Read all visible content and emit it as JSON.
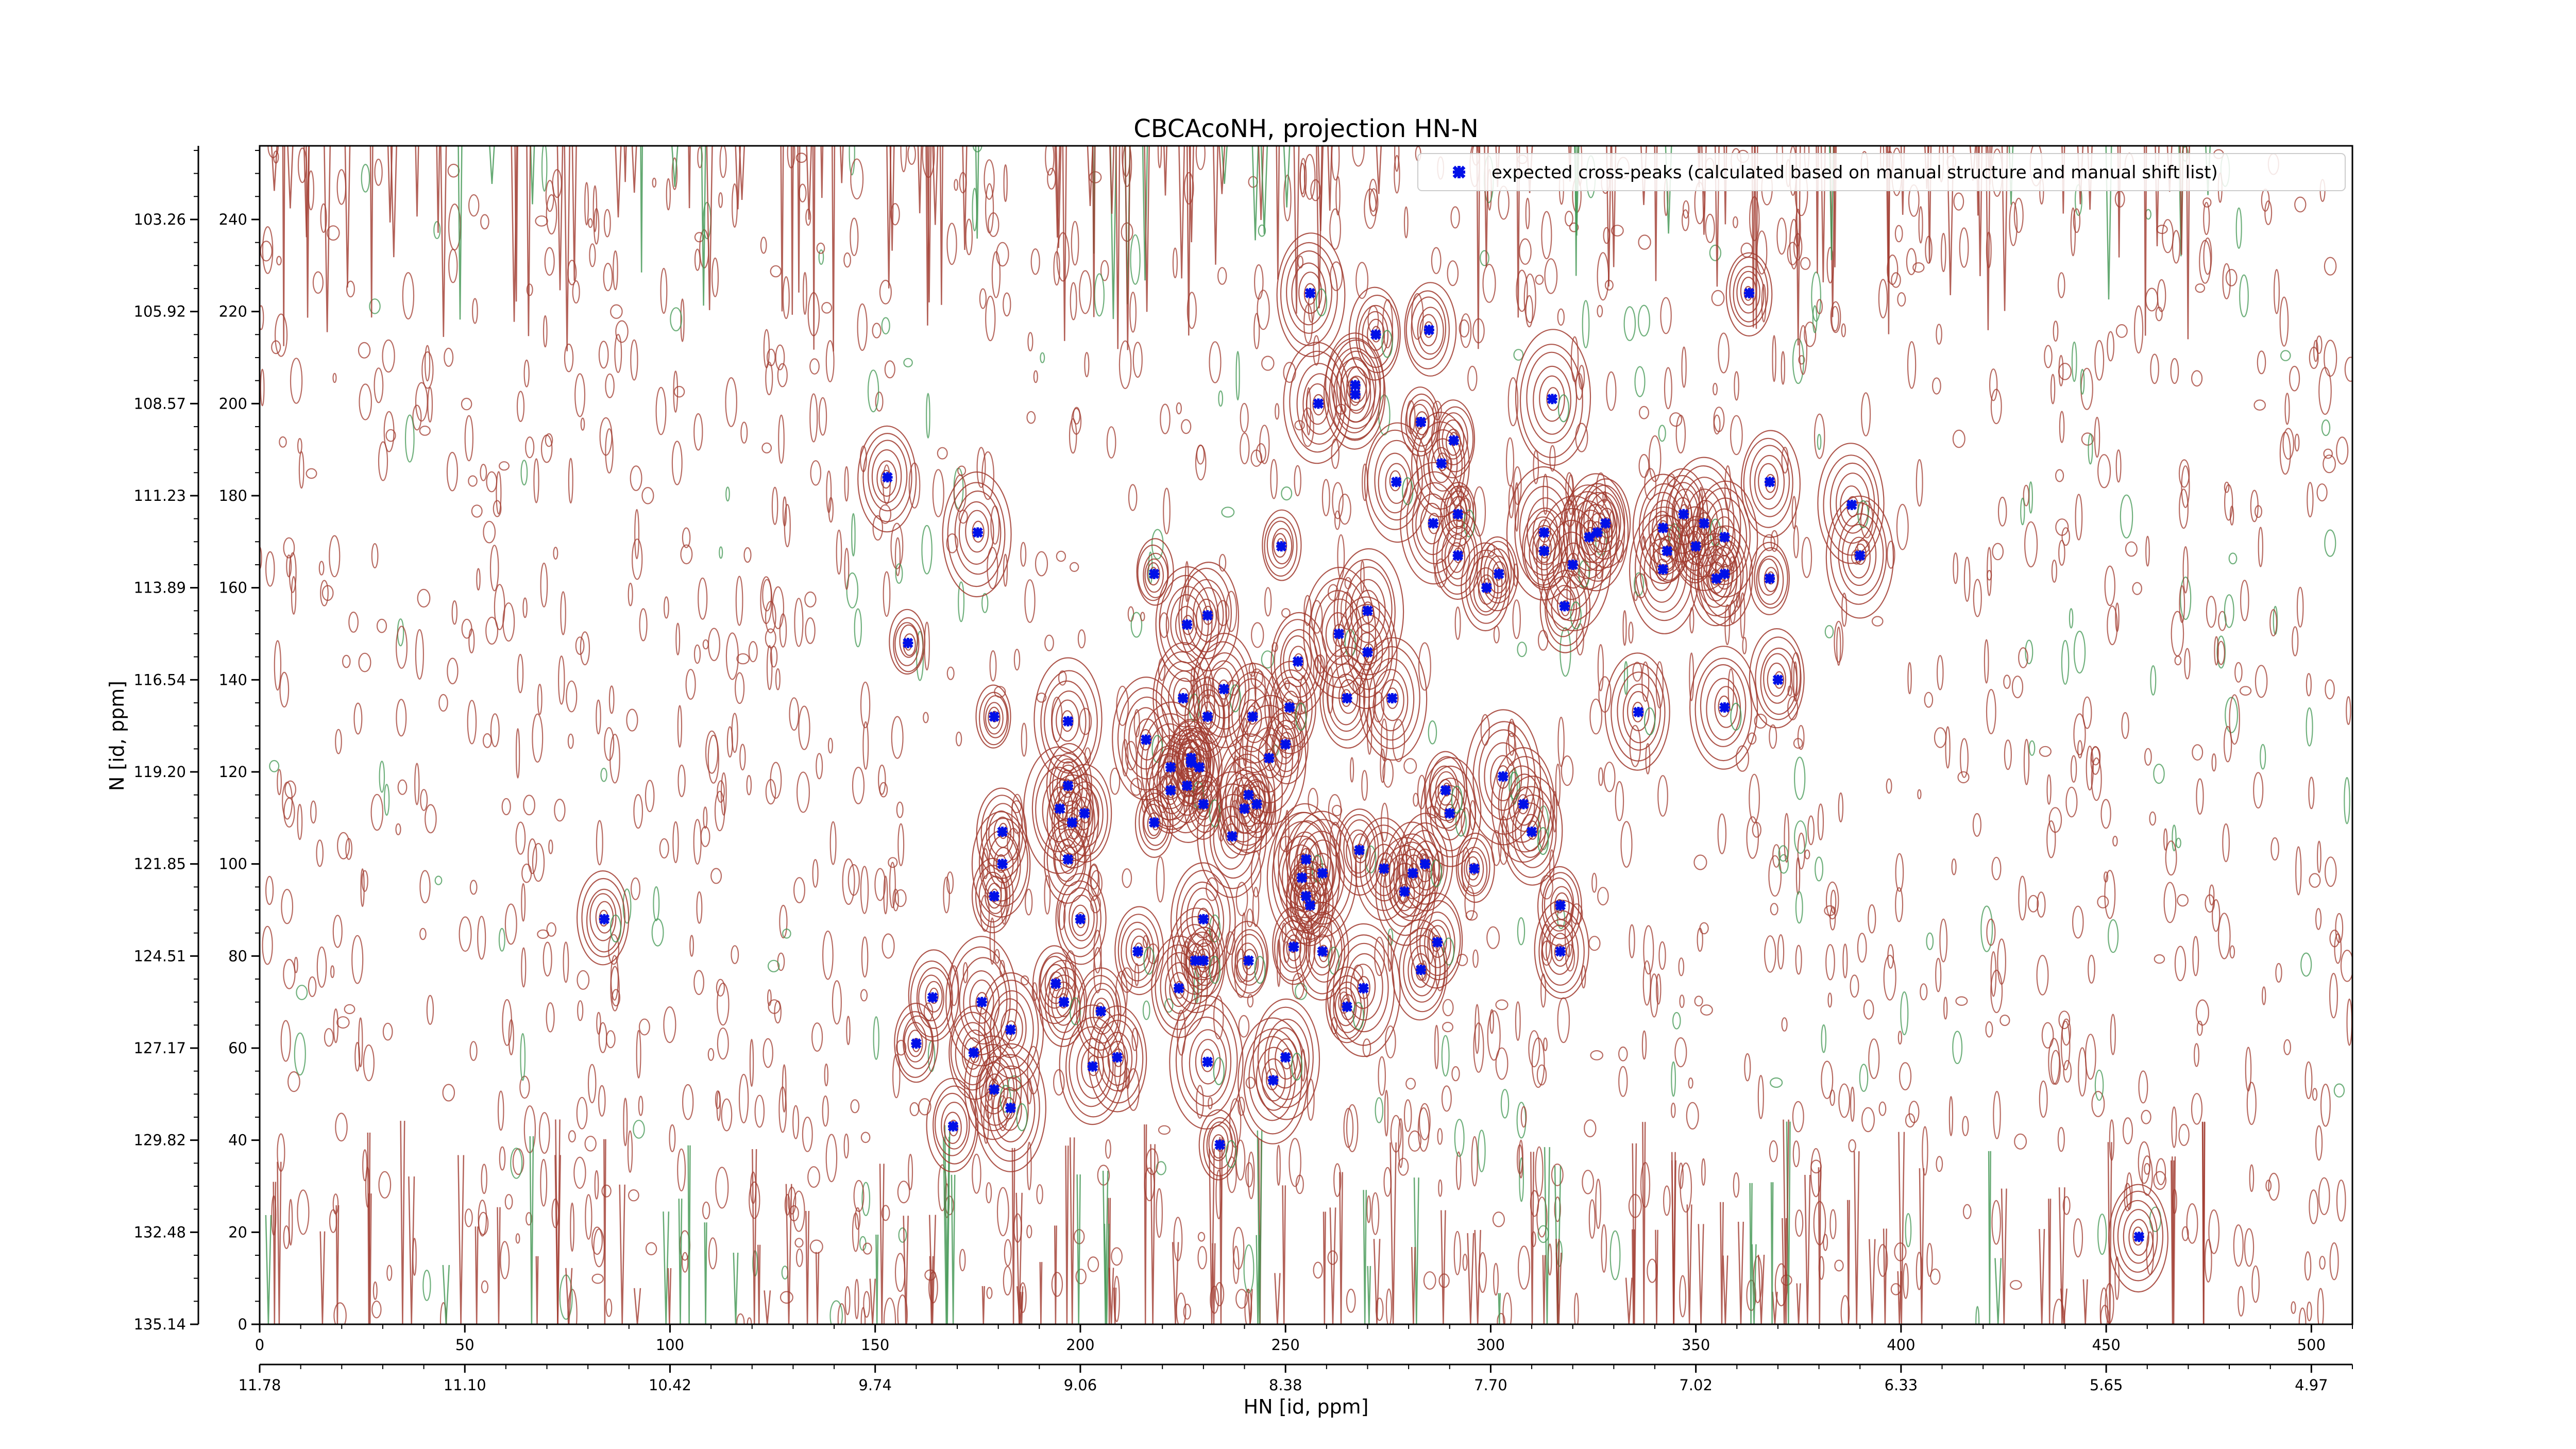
{
  "chart_data": {
    "type": "scatter",
    "title": "CBCAcoNH, projection HN-N",
    "xlabel": "HN [id, ppm]",
    "ylabel": "N [id, ppm]",
    "xlim": [
      0,
      510
    ],
    "ylim": [
      0,
      256
    ],
    "x_ticks": [
      0,
      50,
      100,
      150,
      200,
      250,
      300,
      350,
      400,
      450,
      500
    ],
    "y_ticks": [
      0,
      20,
      40,
      60,
      80,
      100,
      120,
      140,
      160,
      180,
      200,
      220,
      240
    ],
    "x_ppm_ticks": [
      {
        "x": 0,
        "label": "11.78"
      },
      {
        "x": 50,
        "label": "11.10"
      },
      {
        "x": 100,
        "label": "10.42"
      },
      {
        "x": 150,
        "label": "9.74"
      },
      {
        "x": 200,
        "label": "9.06"
      },
      {
        "x": 250,
        "label": "8.38"
      },
      {
        "x": 300,
        "label": "7.70"
      },
      {
        "x": 350,
        "label": "7.02"
      },
      {
        "x": 400,
        "label": "6.33"
      },
      {
        "x": 450,
        "label": "5.65"
      },
      {
        "x": 500,
        "label": "4.97"
      }
    ],
    "y_ppm_ticks": [
      {
        "y": 0,
        "label": "135.14"
      },
      {
        "y": 20,
        "label": "132.48"
      },
      {
        "y": 40,
        "label": "129.82"
      },
      {
        "y": 60,
        "label": "127.17"
      },
      {
        "y": 80,
        "label": "124.51"
      },
      {
        "y": 100,
        "label": "121.85"
      },
      {
        "y": 120,
        "label": "119.20"
      },
      {
        "y": 140,
        "label": "116.54"
      },
      {
        "y": 160,
        "label": "113.89"
      },
      {
        "y": 180,
        "label": "111.23"
      },
      {
        "y": 200,
        "label": "108.57"
      },
      {
        "y": 220,
        "label": "105.92"
      },
      {
        "y": 240,
        "label": "103.26"
      }
    ],
    "legend": {
      "position": "top-right",
      "label": "expected cross-peaks (calculated based on manual structure and manual shift list)"
    },
    "colors": {
      "positive_contour": "#a0392e",
      "negative_contour": "#3f9550",
      "peak_marker": "#0010e8"
    },
    "series": [
      {
        "name": "expected cross-peaks (calculated based on manual structure and manual shift list)",
        "points": [
          [
            153,
            184
          ],
          [
            175,
            172
          ],
          [
            158,
            148
          ],
          [
            84,
            88
          ],
          [
            164,
            71
          ],
          [
            160,
            61
          ],
          [
            169,
            43
          ],
          [
            179,
            132
          ],
          [
            181,
            107
          ],
          [
            181,
            100
          ],
          [
            179,
            93
          ],
          [
            176,
            70
          ],
          [
            174,
            59
          ],
          [
            183,
            64
          ],
          [
            179,
            51
          ],
          [
            183,
            47
          ],
          [
            197,
            131
          ],
          [
            197,
            117
          ],
          [
            195,
            112
          ],
          [
            198,
            109
          ],
          [
            201,
            111
          ],
          [
            197,
            101
          ],
          [
            200,
            88
          ],
          [
            194,
            74
          ],
          [
            196,
            70
          ],
          [
            205,
            68
          ],
          [
            203,
            56
          ],
          [
            209,
            58
          ],
          [
            218,
            163
          ],
          [
            216,
            127
          ],
          [
            226,
            152
          ],
          [
            225,
            136
          ],
          [
            231,
            132
          ],
          [
            227,
            123
          ],
          [
            222,
            121
          ],
          [
            222,
            116
          ],
          [
            226,
            117
          ],
          [
            227,
            122
          ],
          [
            229,
            121
          ],
          [
            230,
            113
          ],
          [
            218,
            109
          ],
          [
            214,
            81
          ],
          [
            230,
            88
          ],
          [
            228,
            79
          ],
          [
            230,
            79
          ],
          [
            224,
            73
          ],
          [
            231,
            57
          ],
          [
            234,
            39
          ],
          [
            231,
            154
          ],
          [
            235,
            138
          ],
          [
            242,
            132
          ],
          [
            237,
            106
          ],
          [
            240,
            112
          ],
          [
            241,
            115
          ],
          [
            243,
            113
          ],
          [
            246,
            123
          ],
          [
            250,
            126
          ],
          [
            247,
            53
          ],
          [
            250,
            58
          ],
          [
            249,
            169
          ],
          [
            253,
            144
          ],
          [
            251,
            134
          ],
          [
            241,
            79
          ],
          [
            256,
            224
          ],
          [
            258,
            200
          ],
          [
            263,
            150
          ],
          [
            265,
            136
          ],
          [
            268,
            103
          ],
          [
            259,
            98
          ],
          [
            255,
            101
          ],
          [
            254,
            97
          ],
          [
            255,
            93
          ],
          [
            256,
            91
          ],
          [
            252,
            82
          ],
          [
            259,
            81
          ],
          [
            265,
            69
          ],
          [
            269,
            73
          ],
          [
            272,
            215
          ],
          [
            267,
            204
          ],
          [
            267,
            202
          ],
          [
            270,
            146
          ],
          [
            270,
            155
          ],
          [
            277,
            183
          ],
          [
            276,
            136
          ],
          [
            281,
            98
          ],
          [
            274,
            99
          ],
          [
            279,
            94
          ],
          [
            284,
            100
          ],
          [
            296,
            99
          ],
          [
            290,
            111
          ],
          [
            289,
            116
          ],
          [
            287,
            83
          ],
          [
            283,
            77
          ],
          [
            303,
            119
          ],
          [
            308,
            113
          ],
          [
            310,
            107
          ],
          [
            317,
            91
          ],
          [
            317,
            81
          ],
          [
            285,
            216
          ],
          [
            283,
            196
          ],
          [
            288,
            187
          ],
          [
            291,
            192
          ],
          [
            292,
            176
          ],
          [
            286,
            174
          ],
          [
            292,
            167
          ],
          [
            299,
            160
          ],
          [
            302,
            163
          ],
          [
            313,
            168
          ],
          [
            313,
            172
          ],
          [
            315,
            201
          ],
          [
            318,
            156
          ],
          [
            320,
            165
          ],
          [
            324,
            171
          ],
          [
            326,
            172
          ],
          [
            328,
            174
          ],
          [
            342,
            173
          ],
          [
            342,
            164
          ],
          [
            343,
            168
          ],
          [
            347,
            176
          ],
          [
            350,
            169
          ],
          [
            352,
            174
          ],
          [
            357,
            163
          ],
          [
            355,
            162
          ],
          [
            357,
            171
          ],
          [
            368,
            183
          ],
          [
            388,
            178
          ],
          [
            390,
            167
          ],
          [
            368,
            162
          ],
          [
            357,
            134
          ],
          [
            370,
            140
          ],
          [
            363,
            224
          ],
          [
            458,
            19
          ],
          [
            336,
            133
          ]
        ]
      }
    ]
  }
}
